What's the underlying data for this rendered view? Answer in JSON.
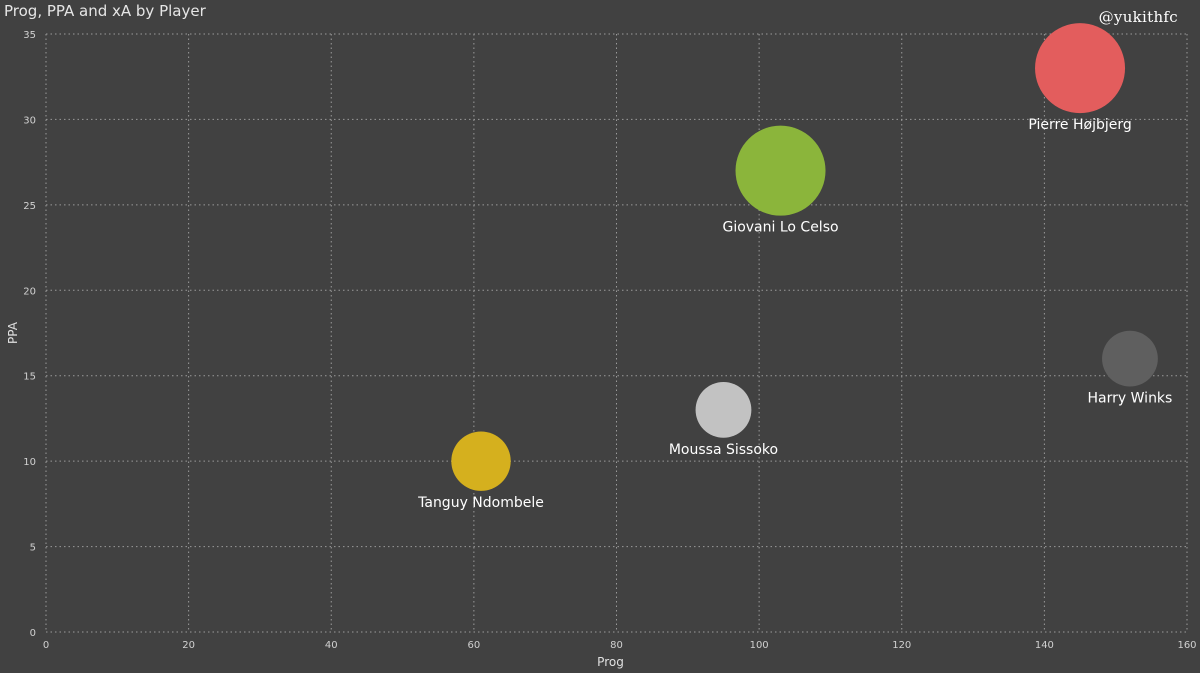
{
  "header": {
    "title": "Prog, PPA and xA by Player",
    "watermark": "@yukithfc"
  },
  "chart_data": {
    "type": "scatter",
    "title": "Prog, PPA and xA by Player",
    "xlabel": "Prog",
    "ylabel": "PPA",
    "size_field": "xA",
    "xlim": [
      0,
      160
    ],
    "ylim": [
      0,
      35
    ],
    "x_ticks": [
      0,
      20,
      40,
      60,
      80,
      100,
      120,
      140,
      160
    ],
    "y_ticks": [
      0,
      5,
      10,
      15,
      20,
      25,
      30,
      35
    ],
    "grid": true,
    "points": [
      {
        "label": "Pierre Højbjerg",
        "x": 145,
        "y": 33,
        "size": 1.0,
        "color": "#e35d5d"
      },
      {
        "label": "Giovani Lo Celso",
        "x": 103,
        "y": 27,
        "size": 1.0,
        "color": "#8bb53b"
      },
      {
        "label": "Harry Winks",
        "x": 152,
        "y": 16,
        "size": 0.62,
        "color": "#5f5f5f"
      },
      {
        "label": "Moussa Sissoko",
        "x": 95,
        "y": 13,
        "size": 0.62,
        "color": "#c2c2c2"
      },
      {
        "label": "Tanguy Ndombele",
        "x": 61,
        "y": 10,
        "size": 0.66,
        "color": "#d5b01e"
      }
    ]
  }
}
